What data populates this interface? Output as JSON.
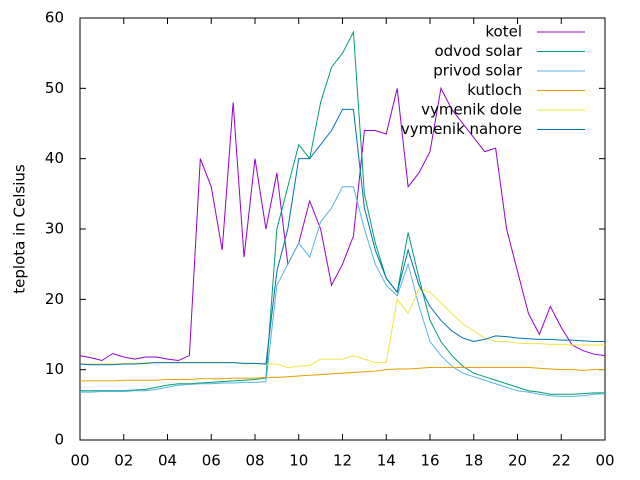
{
  "chart_data": {
    "type": "line",
    "ylabel": "teplota in Celsius",
    "x": [
      0,
      0.5,
      1,
      1.5,
      2,
      2.5,
      3,
      3.5,
      4,
      4.5,
      5,
      5.5,
      6,
      6.5,
      7,
      7.5,
      8,
      8.5,
      9,
      9.5,
      10,
      10.5,
      11,
      11.5,
      12,
      12.5,
      13,
      13.5,
      14,
      14.5,
      15,
      15.5,
      16,
      16.5,
      17,
      17.5,
      18,
      18.5,
      19,
      19.5,
      20,
      20.5,
      21,
      21.5,
      22,
      22.5,
      23,
      23.5,
      24
    ],
    "series": [
      {
        "name": "kotel",
        "color": "#9400d3",
        "values": [
          12,
          11.7,
          11.3,
          12.3,
          11.8,
          11.5,
          11.8,
          11.8,
          11.5,
          11.3,
          12,
          40,
          36,
          27,
          48,
          26,
          40,
          30,
          38,
          25,
          28,
          34,
          30,
          22,
          25,
          29,
          44,
          44,
          43.5,
          50,
          36,
          38,
          41,
          50,
          47,
          45,
          43,
          41,
          41.5,
          30,
          24,
          18,
          15,
          19,
          16,
          13.5,
          12.7,
          12.2,
          12
        ]
      },
      {
        "name": "odvod solar",
        "color": "#009e73",
        "values": [
          7,
          7,
          7,
          7,
          7,
          7.1,
          7.2,
          7.5,
          7.8,
          8,
          8,
          8.1,
          8.2,
          8.3,
          8.4,
          8.5,
          8.6,
          8.8,
          30,
          36,
          42,
          40,
          48,
          53,
          55,
          58,
          35,
          28,
          23,
          21,
          29.5,
          23,
          17,
          14,
          12,
          10.5,
          9.5,
          9,
          8.5,
          8,
          7.5,
          7,
          6.8,
          6.5,
          6.5,
          6.5,
          6.6,
          6.7,
          6.7
        ]
      },
      {
        "name": "privod solar",
        "color": "#56b4e9",
        "values": [
          6.8,
          6.8,
          6.9,
          6.9,
          6.9,
          7,
          7,
          7.2,
          7.5,
          7.8,
          7.9,
          8,
          8,
          8.1,
          8.1,
          8.2,
          8.2,
          8.3,
          22,
          25,
          28,
          26,
          31,
          33,
          36,
          36,
          30,
          25,
          22,
          20.5,
          25,
          19,
          14,
          12,
          10.5,
          9.5,
          9,
          8.5,
          8,
          7.5,
          7,
          6.8,
          6.5,
          6.3,
          6.2,
          6.2,
          6.3,
          6.5,
          6.6
        ]
      },
      {
        "name": "kutloch",
        "color": "#e69f00",
        "values": [
          8.4,
          8.4,
          8.4,
          8.4,
          8.5,
          8.5,
          8.5,
          8.5,
          8.6,
          8.6,
          8.6,
          8.7,
          8.7,
          8.7,
          8.8,
          8.8,
          8.8,
          8.9,
          8.9,
          9,
          9.1,
          9.2,
          9.3,
          9.4,
          9.5,
          9.6,
          9.7,
          9.8,
          10,
          10.1,
          10.1,
          10.2,
          10.3,
          10.3,
          10.3,
          10.3,
          10.3,
          10.3,
          10.3,
          10.3,
          10.3,
          10.3,
          10.2,
          10.1,
          10,
          10,
          9.9,
          10,
          10
        ]
      },
      {
        "name": "vymenik dole",
        "color": "#f0e442",
        "values": [
          10.8,
          10.8,
          10.8,
          10.8,
          10.9,
          10.9,
          11,
          11,
          11,
          11,
          11,
          11,
          11,
          11,
          11,
          10.9,
          10.9,
          10.8,
          10.8,
          10.3,
          10.5,
          10.6,
          11.5,
          11.5,
          11.5,
          12,
          11.5,
          11,
          11,
          20,
          18,
          21.5,
          21,
          19.5,
          18,
          16.5,
          15.5,
          14.5,
          14,
          14,
          13.8,
          13.7,
          13.7,
          13.6,
          13.6,
          13.5,
          13.5,
          13.5,
          13.5
        ]
      },
      {
        "name": "vymenik nahore",
        "color": "#0072b2",
        "values": [
          10.8,
          10.7,
          10.7,
          10.7,
          10.8,
          10.8,
          10.9,
          11,
          11,
          11,
          11,
          11,
          11,
          11,
          11,
          10.9,
          10.9,
          10.8,
          24,
          30,
          40,
          40,
          42,
          44,
          47,
          47,
          33,
          27,
          23,
          21,
          27,
          22,
          19,
          17,
          15.5,
          14.5,
          14,
          14.3,
          14.8,
          14.7,
          14.5,
          14.4,
          14.3,
          14.3,
          14.2,
          14.2,
          14.1,
          14,
          14
        ]
      }
    ],
    "xlim": [
      0,
      24
    ],
    "xticks": [
      {
        "value": 0,
        "label": "00"
      },
      {
        "value": 2,
        "label": "02"
      },
      {
        "value": 4,
        "label": "04"
      },
      {
        "value": 6,
        "label": "06"
      },
      {
        "value": 8,
        "label": "08"
      },
      10,
      12,
      14,
      16,
      18,
      20,
      22,
      {
        "value": 24,
        "label": "00"
      }
    ],
    "ylim": [
      0,
      60
    ],
    "yticks": [
      0,
      10,
      20,
      30,
      40,
      50,
      60
    ],
    "legend": "top-right"
  }
}
